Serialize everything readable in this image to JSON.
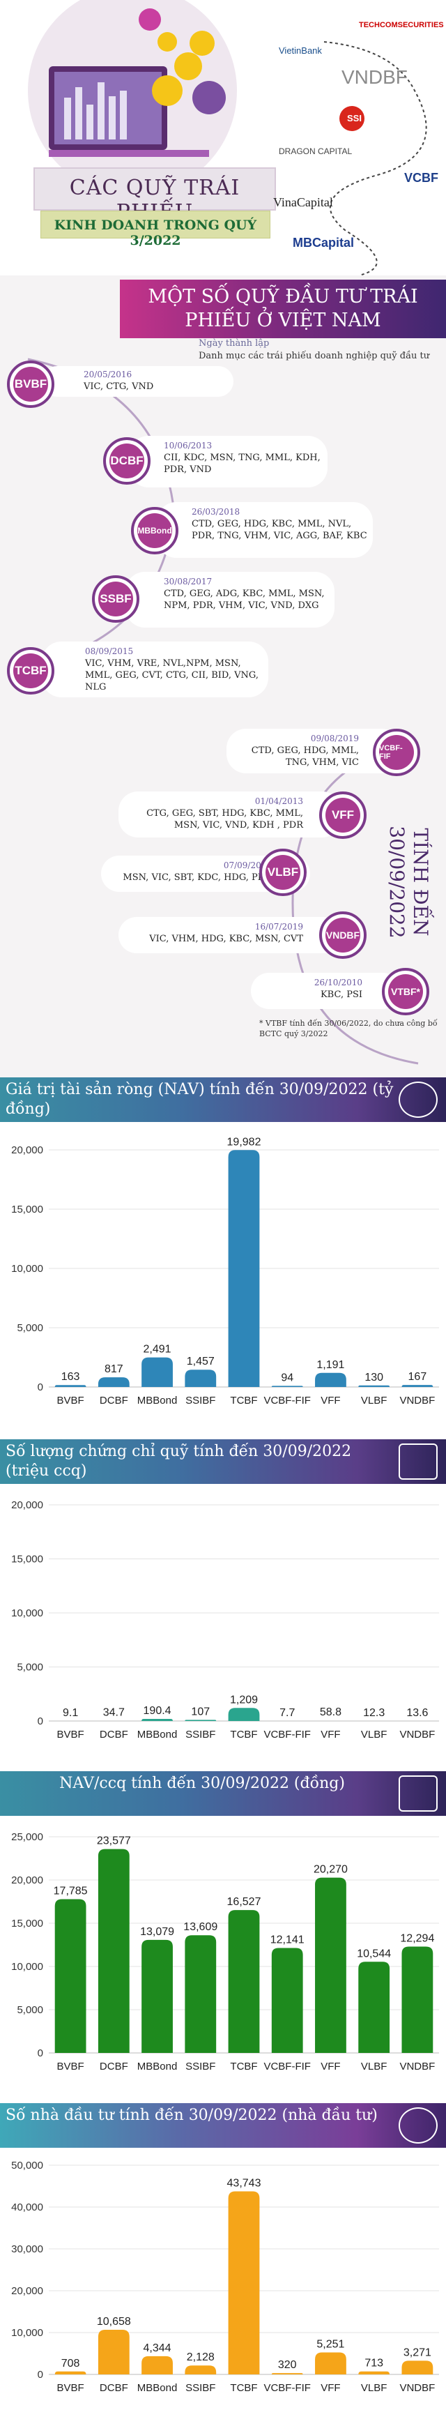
{
  "header": {
    "title": "CÁC QUỸ TRÁI PHIẾU",
    "subtitle": "KINH DOANH TRONG QUÝ 3/2022",
    "logos": [
      "TECHCOMSECURITIES",
      "VietinBank",
      "VNDBF",
      "SSI",
      "DRAGON CAPITAL",
      "VCBF",
      "VinaCapital",
      "MBCapital"
    ]
  },
  "funds": {
    "heading": "MỘT SỐ QUỸ ĐẦU TƯ TRÁI PHIẾU Ở VIỆT NAM",
    "legend_date": "Ngày thành lập",
    "legend_desc": "Danh mục các trái phiếu doanh nghiệp quỹ đầu tư",
    "side_label": "TÍNH ĐẾN 30/09/2022",
    "note": "* VTBF tính đến 30/06/2022, do chưa công bố BCTC quý 3/2022",
    "items": [
      {
        "name": "BVBF",
        "date": "20/05/2016",
        "bonds": "VIC, CTG, VND"
      },
      {
        "name": "DCBF",
        "date": "10/06/2013",
        "bonds": "CII, KDC, MSN, TNG, MML, KDH, PDR, VND"
      },
      {
        "name": "MBBond",
        "date": "26/03/2018",
        "bonds": "CTD, GEG, HDG, KBC, MML, NVL, PDR, TNG, VHM, VIC, AGG, BAF, KBC"
      },
      {
        "name": "SSBF",
        "date": "30/08/2017",
        "bonds": "CTD, GEG, ADG, KBC, MML, MSN, NPM, PDR, VHM, VIC, VND, DXG"
      },
      {
        "name": "TCBF",
        "date": "08/09/2015",
        "bonds": "VIC, VHM, VRE, NVL,NPM, MSN, MML, GEG, CVT, CTG, CII, BID, VNG, NLG"
      },
      {
        "name": "VCBF-FIF",
        "date": "09/08/2019",
        "bonds": "CTD, GEG, HDG, MML, TNG, VHM, VIC"
      },
      {
        "name": "VFF",
        "date": "01/04/2013",
        "bonds": "CTG, GEG, SBT, HDG, KBC, MML, MSN, VIC, VND, KDH , PDR"
      },
      {
        "name": "VLBF",
        "date": "07/09/2021",
        "bonds": "MSN, VIC, SBT, KDC, HDG, PDR"
      },
      {
        "name": "VNDBF",
        "date": "16/07/2019",
        "bonds": "VIC, VHM, HDG, KBC, MSN, CVT"
      },
      {
        "name": "VTBF*",
        "date": "26/10/2010",
        "bonds": "KBC, PSI"
      }
    ]
  },
  "chart_data": [
    {
      "type": "bar",
      "title": "Giá trị tài sản ròng (NAV) tính đến 30/09/2022 (tỷ đồng)",
      "categories": [
        "BVBF",
        "DCBF",
        "MBBond",
        "SSIBF",
        "TCBF",
        "VCBF-FIF",
        "VFF",
        "VLBF",
        "VNDBF"
      ],
      "values": [
        163,
        817,
        2491,
        1457,
        19982,
        94,
        1191,
        130,
        167
      ],
      "labels": [
        "163",
        "817",
        "2,491",
        "1,457",
        "19,982",
        "94",
        "1,191",
        "130",
        "167"
      ],
      "ylim": [
        0,
        20000
      ],
      "yticks": [
        "0",
        "5,000",
        "10,000",
        "15,000",
        "20,000"
      ],
      "color": "#2e86b8"
    },
    {
      "type": "bar",
      "title": "Số lượng chứng chỉ quỹ tính đến 30/09/2022 (triệu ccq)",
      "categories": [
        "BVBF",
        "DCBF",
        "MBBond",
        "SSIBF",
        "TCBF",
        "VCBF-FIF",
        "VFF",
        "VLBF",
        "VNDBF"
      ],
      "values": [
        9.1,
        34.7,
        190.4,
        107,
        1209,
        7.7,
        58.8,
        12.3,
        13.6
      ],
      "labels": [
        "9.1",
        "34.7",
        "190.4",
        "107",
        "1,209",
        "7.7",
        "58.8",
        "12.3",
        "13.6"
      ],
      "ylim": [
        0,
        20000
      ],
      "yticks": [
        "0",
        "5,000",
        "10,000",
        "15,000",
        "20,000"
      ],
      "color": "#2aa58e"
    },
    {
      "type": "bar",
      "title": "NAV/ccq tính đến 30/09/2022 (đồng)",
      "categories": [
        "BVBF",
        "DCBF",
        "MBBond",
        "SSIBF",
        "TCBF",
        "VCBF-FIF",
        "VFF",
        "VLBF",
        "VNDBF"
      ],
      "values": [
        17785,
        23577,
        13079,
        13609,
        16527,
        12141,
        20270,
        10544,
        12294
      ],
      "labels": [
        "17,785",
        "23,577",
        "13,079",
        "13,609",
        "16,527",
        "12,141",
        "20,270",
        "10,544",
        "12,294"
      ],
      "ylim": [
        0,
        25000
      ],
      "yticks": [
        "0",
        "5,000",
        "10,000",
        "15,000",
        "20,000",
        "25,000"
      ],
      "color": "#1e8a1e"
    },
    {
      "type": "bar",
      "title": "Số nhà đầu tư tính đến 30/09/2022 (nhà đầu tư)",
      "categories": [
        "BVBF",
        "DCBF",
        "MBBond",
        "SSIBF",
        "TCBF",
        "VCBF-FIF",
        "VFF",
        "VLBF",
        "VNDBF"
      ],
      "values": [
        708,
        10658,
        4344,
        2128,
        43743,
        320,
        5251,
        713,
        3271
      ],
      "labels": [
        "708",
        "10,658",
        "4,344",
        "2,128",
        "43,743",
        "320",
        "5,251",
        "713",
        "3,271"
      ],
      "ylim": [
        0,
        50000
      ],
      "yticks": [
        "0",
        "10,000",
        "20,000",
        "30,000",
        "40,000",
        "50,000"
      ],
      "color": "#f5a519"
    }
  ]
}
